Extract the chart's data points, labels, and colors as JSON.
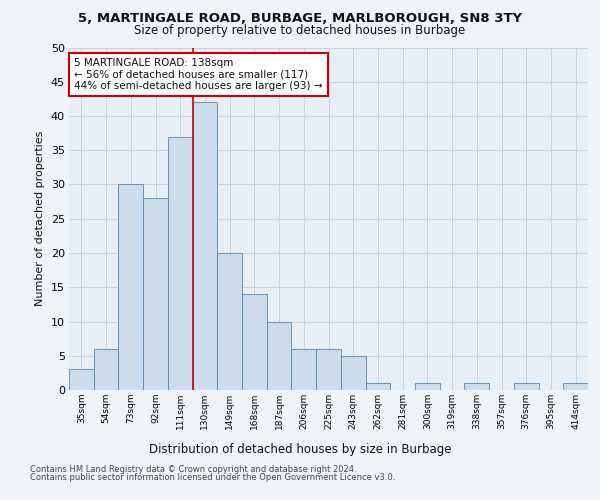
{
  "title1": "5, MARTINGALE ROAD, BURBAGE, MARLBOROUGH, SN8 3TY",
  "title2": "Size of property relative to detached houses in Burbage",
  "xlabel": "Distribution of detached houses by size in Burbage",
  "ylabel": "Number of detached properties",
  "bins": [
    "35sqm",
    "54sqm",
    "73sqm",
    "92sqm",
    "111sqm",
    "130sqm",
    "149sqm",
    "168sqm",
    "187sqm",
    "206sqm",
    "225sqm",
    "243sqm",
    "262sqm",
    "281sqm",
    "300sqm",
    "319sqm",
    "338sqm",
    "357sqm",
    "376sqm",
    "395sqm",
    "414sqm"
  ],
  "values": [
    3,
    6,
    30,
    28,
    37,
    42,
    20,
    14,
    10,
    6,
    6,
    5,
    1,
    0,
    1,
    0,
    1,
    0,
    1,
    0,
    1
  ],
  "bar_color": "#ccdcec",
  "bar_edge_color": "#5588aa",
  "vline_color": "#cc0000",
  "vline_x_index": 5,
  "annotation_text": "5 MARTINGALE ROAD: 138sqm\n← 56% of detached houses are smaller (117)\n44% of semi-detached houses are larger (93) →",
  "annotation_box_color": "#ffffff",
  "annotation_box_edge_color": "#cc0000",
  "ylim": [
    0,
    50
  ],
  "yticks": [
    0,
    5,
    10,
    15,
    20,
    25,
    30,
    35,
    40,
    45,
    50
  ],
  "footer1": "Contains HM Land Registry data © Crown copyright and database right 2024.",
  "footer2": "Contains public sector information licensed under the Open Government Licence v3.0.",
  "bg_color": "#f0f4f8",
  "plot_bg_color": "#e8eef5",
  "grid_color": "#c8d4e0"
}
